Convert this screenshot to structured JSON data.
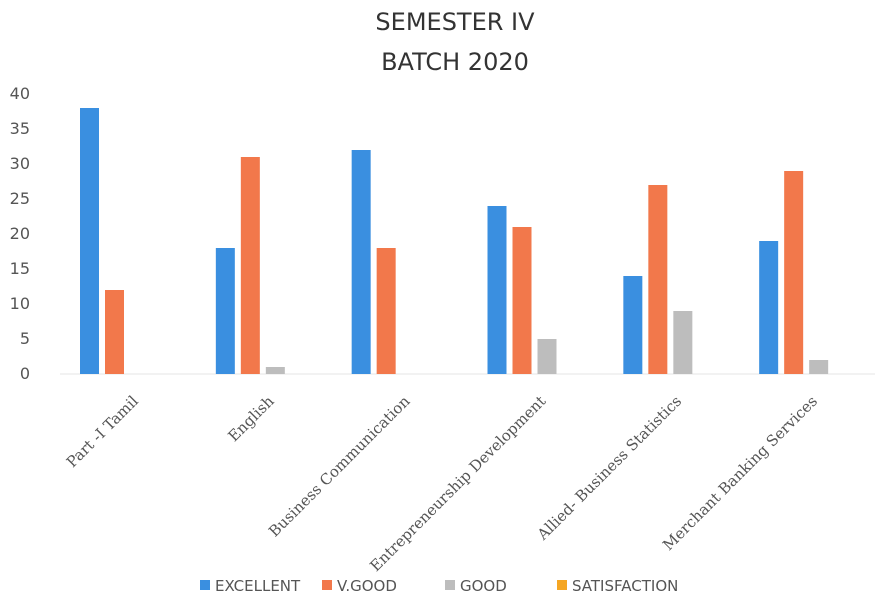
{
  "chart_data": {
    "type": "bar",
    "title": "SEMESTER IV",
    "subtitle": "BATCH 2020",
    "xlabel": "",
    "ylabel": "",
    "ylim": [
      0,
      40
    ],
    "yticks": [
      0,
      5,
      10,
      15,
      20,
      25,
      30,
      35,
      40
    ],
    "grid": false,
    "legend_position": "bottom",
    "categories": [
      "Part -I Tamil",
      "English",
      "Business Communication",
      "Entrepreneurship Development",
      "Allied- Business Statistics",
      "Merchant Banking Services"
    ],
    "series": [
      {
        "name": "EXCELLENT",
        "color": "#3a8fe0",
        "values": [
          38,
          18,
          32,
          24,
          14,
          19
        ]
      },
      {
        "name": "V.GOOD",
        "color": "#f2784b",
        "values": [
          12,
          31,
          18,
          21,
          27,
          29
        ]
      },
      {
        "name": "GOOD",
        "color": "#bdbdbd",
        "values": [
          0,
          1,
          0,
          5,
          9,
          2
        ]
      },
      {
        "name": "SATISFACTION",
        "color": "#f5a623",
        "values": [
          0,
          0,
          0,
          0,
          0,
          0
        ]
      }
    ]
  }
}
